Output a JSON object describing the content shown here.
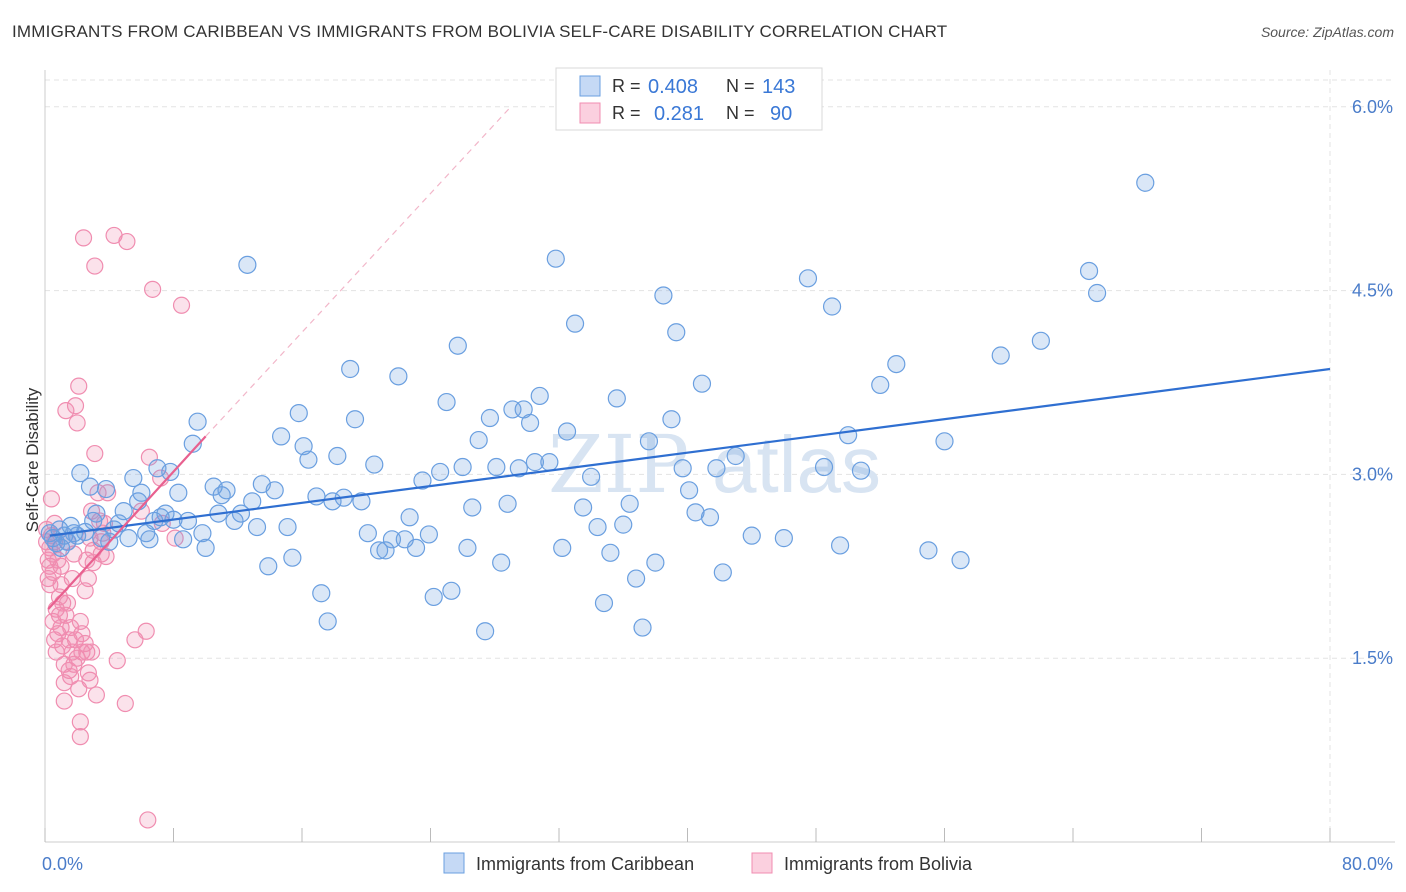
{
  "title": "IMMIGRANTS FROM CARIBBEAN VS IMMIGRANTS FROM BOLIVIA SELF-CARE DISABILITY CORRELATION CHART",
  "source": "Source: ZipAtlas.com",
  "watermark": {
    "zip": "ZIP",
    "atlas": "atlas"
  },
  "legend": {
    "r_label": "R =",
    "n_label": "N =",
    "series": [
      {
        "r": "0.408",
        "n": "143"
      },
      {
        "r": "0.281",
        "n": "90"
      }
    ]
  },
  "colors": {
    "blue": "#6a9fe0",
    "pink": "#f08db0",
    "blue_line": "#2f6fd1",
    "pink_line": "#e8608f"
  },
  "chart_data": {
    "type": "scatter",
    "title": "IMMIGRANTS FROM CARIBBEAN VS IMMIGRANTS FROM BOLIVIA SELF-CARE DISABILITY CORRELATION CHART",
    "xlabel": "",
    "ylabel": "Self-Care Disability",
    "xlim": [
      0,
      80
    ],
    "ylim": [
      0,
      6.3
    ],
    "x_tick_labels": [
      "0.0%",
      "80.0%"
    ],
    "y_ticks": [
      1.5,
      3.0,
      4.5,
      6.0
    ],
    "y_tick_labels": [
      "1.5%",
      "3.0%",
      "4.5%",
      "6.0%"
    ],
    "grid": true,
    "legend_position": "bottom",
    "series": [
      {
        "name": "Immigrants from Caribbean",
        "color": "#6a9fe0",
        "trend": {
          "x": [
            0.3,
            80
          ],
          "y": [
            2.5,
            3.86
          ]
        },
        "points": [
          [
            0.3,
            2.52
          ],
          [
            0.5,
            2.48
          ],
          [
            0.7,
            2.44
          ],
          [
            0.9,
            2.55
          ],
          [
            1.0,
            2.4
          ],
          [
            1.2,
            2.5
          ],
          [
            1.4,
            2.45
          ],
          [
            1.6,
            2.58
          ],
          [
            1.8,
            2.52
          ],
          [
            2.0,
            2.5
          ],
          [
            2.2,
            3.01
          ],
          [
            2.5,
            2.53
          ],
          [
            2.8,
            2.9
          ],
          [
            3.0,
            2.62
          ],
          [
            3.2,
            2.68
          ],
          [
            3.5,
            2.48
          ],
          [
            3.8,
            2.88
          ],
          [
            4.0,
            2.45
          ],
          [
            4.3,
            2.55
          ],
          [
            4.6,
            2.6
          ],
          [
            4.9,
            2.7
          ],
          [
            5.2,
            2.48
          ],
          [
            5.5,
            2.97
          ],
          [
            5.8,
            2.78
          ],
          [
            6.0,
            2.85
          ],
          [
            6.3,
            2.52
          ],
          [
            6.5,
            2.47
          ],
          [
            6.8,
            2.62
          ],
          [
            7.0,
            3.05
          ],
          [
            7.2,
            2.65
          ],
          [
            7.5,
            2.68
          ],
          [
            7.8,
            3.02
          ],
          [
            8.0,
            2.63
          ],
          [
            8.3,
            2.85
          ],
          [
            8.6,
            2.47
          ],
          [
            8.9,
            2.62
          ],
          [
            9.2,
            3.25
          ],
          [
            9.5,
            3.43
          ],
          [
            9.8,
            2.52
          ],
          [
            10.0,
            2.4
          ],
          [
            10.5,
            2.9
          ],
          [
            10.8,
            2.68
          ],
          [
            11.0,
            2.83
          ],
          [
            11.3,
            2.87
          ],
          [
            11.8,
            2.62
          ],
          [
            12.2,
            2.68
          ],
          [
            12.6,
            4.71
          ],
          [
            12.9,
            2.78
          ],
          [
            13.2,
            2.57
          ],
          [
            13.5,
            2.92
          ],
          [
            13.9,
            2.25
          ],
          [
            14.3,
            2.87
          ],
          [
            14.7,
            3.31
          ],
          [
            15.1,
            2.57
          ],
          [
            15.4,
            2.32
          ],
          [
            15.8,
            3.5
          ],
          [
            16.1,
            3.23
          ],
          [
            16.4,
            3.12
          ],
          [
            16.9,
            2.82
          ],
          [
            17.2,
            2.03
          ],
          [
            17.6,
            1.8
          ],
          [
            17.9,
            2.78
          ],
          [
            18.2,
            3.15
          ],
          [
            18.6,
            2.81
          ],
          [
            19.0,
            3.86
          ],
          [
            19.3,
            3.45
          ],
          [
            19.7,
            2.78
          ],
          [
            20.1,
            2.52
          ],
          [
            20.5,
            3.08
          ],
          [
            20.8,
            2.38
          ],
          [
            21.2,
            2.38
          ],
          [
            21.6,
            2.47
          ],
          [
            22.0,
            3.8
          ],
          [
            22.4,
            2.47
          ],
          [
            22.7,
            2.65
          ],
          [
            23.1,
            2.4
          ],
          [
            23.5,
            2.95
          ],
          [
            23.9,
            2.51
          ],
          [
            24.2,
            2.0
          ],
          [
            24.6,
            3.02
          ],
          [
            25.0,
            3.59
          ],
          [
            25.3,
            2.05
          ],
          [
            25.7,
            4.05
          ],
          [
            26.0,
            3.06
          ],
          [
            26.3,
            2.4
          ],
          [
            26.6,
            2.73
          ],
          [
            27.0,
            3.28
          ],
          [
            27.4,
            1.72
          ],
          [
            27.7,
            3.46
          ],
          [
            28.1,
            3.06
          ],
          [
            28.4,
            2.28
          ],
          [
            28.8,
            2.76
          ],
          [
            29.1,
            3.53
          ],
          [
            29.5,
            3.05
          ],
          [
            29.8,
            3.53
          ],
          [
            30.2,
            3.42
          ],
          [
            30.5,
            3.1
          ],
          [
            30.8,
            3.64
          ],
          [
            31.4,
            3.1
          ],
          [
            31.8,
            4.76
          ],
          [
            32.2,
            2.4
          ],
          [
            32.5,
            3.35
          ],
          [
            33.0,
            4.23
          ],
          [
            33.5,
            2.73
          ],
          [
            34.0,
            2.98
          ],
          [
            34.4,
            2.57
          ],
          [
            34.8,
            1.95
          ],
          [
            35.2,
            2.36
          ],
          [
            35.6,
            3.62
          ],
          [
            36.0,
            2.59
          ],
          [
            36.4,
            2.76
          ],
          [
            36.8,
            2.15
          ],
          [
            37.2,
            1.75
          ],
          [
            37.6,
            3.27
          ],
          [
            38.0,
            2.28
          ],
          [
            38.5,
            4.46
          ],
          [
            39.0,
            3.45
          ],
          [
            39.3,
            4.16
          ],
          [
            39.7,
            3.05
          ],
          [
            40.1,
            2.87
          ],
          [
            40.5,
            2.69
          ],
          [
            40.9,
            3.74
          ],
          [
            41.4,
            2.65
          ],
          [
            41.8,
            3.05
          ],
          [
            42.2,
            2.2
          ],
          [
            43.0,
            3.15
          ],
          [
            44.0,
            2.5
          ],
          [
            46.0,
            2.48
          ],
          [
            47.5,
            4.6
          ],
          [
            48.5,
            3.06
          ],
          [
            49.0,
            4.37
          ],
          [
            49.5,
            2.42
          ],
          [
            50.0,
            3.32
          ],
          [
            50.8,
            3.03
          ],
          [
            52.0,
            3.73
          ],
          [
            53.0,
            3.9
          ],
          [
            55.0,
            2.38
          ],
          [
            56.0,
            3.27
          ],
          [
            57.0,
            2.3
          ],
          [
            59.5,
            3.97
          ],
          [
            62.0,
            4.09
          ],
          [
            65.0,
            4.66
          ],
          [
            65.5,
            4.48
          ],
          [
            68.5,
            5.38
          ]
        ]
      },
      {
        "name": "Immigrants from Bolivia",
        "color": "#f08db0",
        "trend": {
          "x": [
            0.2,
            10
          ],
          "y": [
            1.9,
            3.31
          ]
        },
        "trend_ext": {
          "x": [
            10,
            29
          ],
          "y": [
            3.31,
            6.0
          ]
        },
        "points": [
          [
            0.1,
            2.55
          ],
          [
            0.1,
            2.45
          ],
          [
            0.2,
            2.3
          ],
          [
            0.2,
            2.15
          ],
          [
            0.3,
            2.4
          ],
          [
            0.3,
            2.25
          ],
          [
            0.3,
            2.1
          ],
          [
            0.4,
            2.8
          ],
          [
            0.4,
            2.5
          ],
          [
            0.5,
            2.35
          ],
          [
            0.5,
            2.2
          ],
          [
            0.5,
            1.8
          ],
          [
            0.6,
            2.45
          ],
          [
            0.6,
            1.65
          ],
          [
            0.7,
            1.55
          ],
          [
            0.7,
            1.9
          ],
          [
            0.8,
            2.3
          ],
          [
            0.8,
            1.7
          ],
          [
            0.9,
            2.0
          ],
          [
            0.9,
            1.85
          ],
          [
            1.0,
            2.1
          ],
          [
            1.0,
            1.75
          ],
          [
            1.1,
            1.95
          ],
          [
            1.1,
            1.6
          ],
          [
            1.2,
            1.45
          ],
          [
            1.2,
            1.3
          ],
          [
            1.2,
            1.15
          ],
          [
            1.3,
            1.85
          ],
          [
            1.3,
            3.52
          ],
          [
            1.4,
            1.95
          ],
          [
            1.5,
            1.65
          ],
          [
            1.5,
            1.4
          ],
          [
            1.6,
            1.75
          ],
          [
            1.6,
            1.35
          ],
          [
            1.7,
            2.15
          ],
          [
            1.7,
            1.55
          ],
          [
            1.8,
            2.35
          ],
          [
            1.8,
            1.45
          ],
          [
            1.9,
            3.56
          ],
          [
            1.9,
            1.65
          ],
          [
            2.0,
            3.42
          ],
          [
            2.0,
            1.5
          ],
          [
            2.1,
            3.72
          ],
          [
            2.1,
            1.25
          ],
          [
            2.2,
            0.98
          ],
          [
            2.2,
            0.86
          ],
          [
            2.3,
            1.7
          ],
          [
            2.3,
            1.55
          ],
          [
            2.4,
            4.93
          ],
          [
            2.5,
            2.05
          ],
          [
            2.5,
            1.62
          ],
          [
            2.6,
            2.3
          ],
          [
            2.6,
            1.55
          ],
          [
            2.7,
            2.15
          ],
          [
            2.7,
            1.38
          ],
          [
            2.8,
            2.48
          ],
          [
            2.8,
            1.32
          ],
          [
            2.9,
            2.7
          ],
          [
            2.9,
            1.55
          ],
          [
            3.0,
            2.38
          ],
          [
            3.0,
            2.28
          ],
          [
            3.1,
            4.7
          ],
          [
            3.1,
            3.17
          ],
          [
            3.2,
            1.2
          ],
          [
            3.3,
            2.85
          ],
          [
            3.4,
            2.62
          ],
          [
            3.5,
            2.45
          ],
          [
            3.5,
            2.35
          ],
          [
            3.6,
            2.52
          ],
          [
            3.7,
            2.6
          ],
          [
            3.8,
            2.33
          ],
          [
            3.9,
            2.85
          ],
          [
            4.3,
            4.95
          ],
          [
            4.5,
            1.48
          ],
          [
            5.0,
            1.13
          ],
          [
            5.1,
            4.9
          ],
          [
            5.6,
            1.65
          ],
          [
            6.0,
            2.7
          ],
          [
            6.3,
            1.72
          ],
          [
            6.4,
            0.18
          ],
          [
            6.5,
            3.14
          ],
          [
            6.7,
            4.51
          ],
          [
            7.2,
            2.97
          ],
          [
            7.3,
            2.6
          ],
          [
            8.1,
            2.48
          ],
          [
            8.5,
            4.38
          ],
          [
            1.0,
            2.25
          ],
          [
            1.4,
            2.45
          ],
          [
            0.6,
            2.6
          ],
          [
            2.2,
            1.8
          ]
        ]
      }
    ]
  }
}
